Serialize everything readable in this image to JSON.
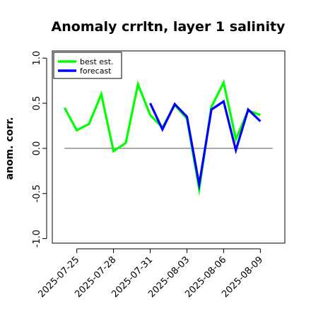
{
  "chart_data": {
    "type": "line",
    "title": "Anomaly crrltn, layer 1 salinity",
    "ylabel": "anom. corr.",
    "xlabel": "",
    "ylim": [
      -1.05,
      1.08
    ],
    "yticks": [
      -1.0,
      -0.5,
      0.0,
      0.5,
      1.0
    ],
    "ytick_labels": [
      "-1.0",
      "-0.5",
      "0.0",
      "0.5",
      "1.0"
    ],
    "x": [
      "2025-07-24",
      "2025-07-25",
      "2025-07-26",
      "2025-07-27",
      "2025-07-28",
      "2025-07-29",
      "2025-07-30",
      "2025-07-31",
      "2025-08-01",
      "2025-08-02",
      "2025-08-03",
      "2025-08-04",
      "2025-08-05",
      "2025-08-06",
      "2025-08-07",
      "2025-08-08",
      "2025-08-09",
      "2025-08-10"
    ],
    "xlim": [
      "2025-07-23",
      "2025-08-11"
    ],
    "xtick_labels": [
      "2025-07-25",
      "2025-07-28",
      "2025-07-31",
      "2025-08-03",
      "2025-08-06",
      "2025-08-09"
    ],
    "xtick_colors": [
      "#000000",
      "#000000",
      "#228B22",
      "#000000",
      "#000000",
      "#000000"
    ],
    "reference_line": 0.0,
    "series": [
      {
        "name": "best est.",
        "color": "#00ff00",
        "values": [
          0.45,
          0.2,
          0.27,
          0.6,
          -0.03,
          0.06,
          0.71,
          0.37,
          0.23,
          0.48,
          0.33,
          -0.45,
          0.46,
          0.73,
          0.1,
          0.42,
          0.37,
          null
        ]
      },
      {
        "name": "forecast",
        "color": "#0000ff",
        "values": [
          null,
          null,
          null,
          null,
          null,
          null,
          null,
          0.5,
          0.21,
          0.49,
          0.35,
          -0.4,
          0.43,
          0.52,
          -0.02,
          0.43,
          0.3,
          null
        ]
      }
    ],
    "legend": "top-left",
    "grid": false
  }
}
